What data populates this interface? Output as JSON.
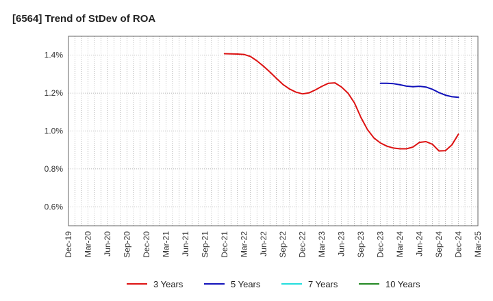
{
  "chart_data": {
    "type": "line",
    "title": "[6564]  Trend of StDev of ROA",
    "xlabel": "",
    "ylabel": "",
    "ylim": [
      0.5,
      1.5
    ],
    "yticks": [
      "0.6%",
      "0.8%",
      "1.0%",
      "1.2%",
      "1.4%"
    ],
    "ytick_values": [
      0.6,
      0.8,
      1.0,
      1.2,
      1.4
    ],
    "xticks": [
      "Dec-19",
      "Mar-20",
      "Jun-20",
      "Sep-20",
      "Dec-20",
      "Mar-21",
      "Jun-21",
      "Sep-21",
      "Dec-21",
      "Mar-22",
      "Jun-22",
      "Sep-22",
      "Dec-22",
      "Mar-23",
      "Jun-23",
      "Sep-23",
      "Dec-23",
      "Mar-24",
      "Jun-24",
      "Sep-24",
      "Dec-24",
      "Mar-25"
    ],
    "grid": true,
    "legend_position": "bottom",
    "series": [
      {
        "name": "3 Years",
        "color": "#dd1111",
        "x": [
          "Dec-21",
          "Jan-22",
          "Feb-22",
          "Mar-22",
          "Apr-22",
          "May-22",
          "Jun-22",
          "Jul-22",
          "Aug-22",
          "Sep-22",
          "Oct-22",
          "Nov-22",
          "Dec-22",
          "Jan-23",
          "Feb-23",
          "Mar-23",
          "Apr-23",
          "May-23",
          "Jun-23",
          "Jul-23",
          "Aug-23",
          "Sep-23",
          "Oct-23",
          "Nov-23",
          "Dec-23",
          "Jan-24",
          "Feb-24",
          "Mar-24",
          "Apr-24",
          "May-24",
          "Jun-24",
          "Jul-24",
          "Aug-24",
          "Sep-24",
          "Oct-24",
          "Nov-24",
          "Dec-24"
        ],
        "y": [
          1.408,
          1.407,
          1.406,
          1.404,
          1.393,
          1.37,
          1.342,
          1.311,
          1.278,
          1.246,
          1.222,
          1.205,
          1.196,
          1.201,
          1.217,
          1.236,
          1.252,
          1.254,
          1.232,
          1.2,
          1.148,
          1.072,
          1.008,
          0.963,
          0.937,
          0.92,
          0.91,
          0.906,
          0.906,
          0.915,
          0.94,
          0.944,
          0.93,
          0.895,
          0.896,
          0.927,
          0.983
        ]
      },
      {
        "name": "5 Years",
        "color": "#1111bb",
        "x": [
          "Dec-23",
          "Jan-24",
          "Feb-24",
          "Mar-24",
          "Apr-24",
          "May-24",
          "Jun-24",
          "Jul-24",
          "Aug-24",
          "Sep-24",
          "Oct-24",
          "Nov-24",
          "Dec-24"
        ],
        "y": [
          1.252,
          1.252,
          1.25,
          1.244,
          1.237,
          1.234,
          1.236,
          1.232,
          1.22,
          1.203,
          1.189,
          1.181,
          1.178
        ]
      },
      {
        "name": "7 Years",
        "color": "#22dddd",
        "x": [],
        "y": []
      },
      {
        "name": "10 Years",
        "color": "#228822",
        "x": [],
        "y": []
      }
    ]
  }
}
